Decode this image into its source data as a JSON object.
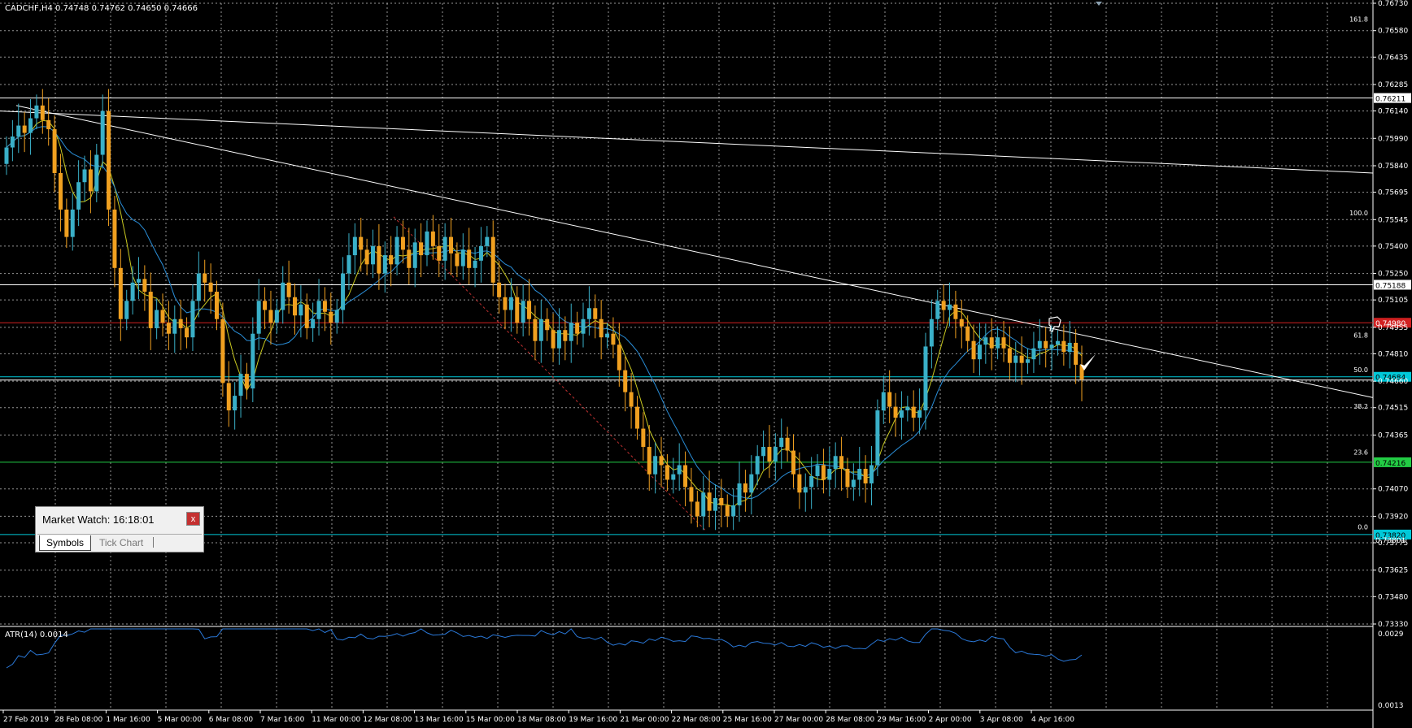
{
  "chart_data": {
    "type": "candlestick",
    "symbol": "CADCHF,H4",
    "ohlc_readout": "0.74748 0.74762 0.74650 0.74666",
    "ylim": [
      0.7333,
      0.7673
    ],
    "y_ticks": [
      "0.76730",
      "0.76580",
      "0.76435",
      "0.76285",
      "0.76140",
      "0.75990",
      "0.75840",
      "0.75695",
      "0.75545",
      "0.75400",
      "0.75250",
      "0.75105",
      "0.74955",
      "0.74810",
      "0.74660",
      "0.74515",
      "0.74365",
      "0.74070",
      "0.73920",
      "0.73775",
      "0.73625",
      "0.73480",
      "0.73330"
    ],
    "x_labels": [
      "27 Feb 2019",
      "28 Feb 08:00",
      "1 Mar 16:00",
      "5 Mar 00:00",
      "6 Mar 08:00",
      "7 Mar 16:00",
      "11 Mar 00:00",
      "12 Mar 08:00",
      "13 Mar 16:00",
      "15 Mar 00:00",
      "18 Mar 08:00",
      "19 Mar 16:00",
      "21 Mar 00:00",
      "22 Mar 08:00",
      "25 Mar 16:00",
      "27 Mar 00:00",
      "28 Mar 08:00",
      "29 Mar 16:00",
      "2 Apr 00:00",
      "3 Apr 08:00",
      "4 Apr 16:00"
    ],
    "close": [
      0.7594,
      0.76,
      0.7606,
      0.7602,
      0.761,
      0.7617,
      0.7609,
      0.7604,
      0.758,
      0.756,
      0.7545,
      0.756,
      0.7575,
      0.7582,
      0.757,
      0.759,
      0.7614,
      0.756,
      0.7528,
      0.75,
      0.751,
      0.752,
      0.7522,
      0.7515,
      0.7495,
      0.7505,
      0.7498,
      0.7492,
      0.75,
      0.7495,
      0.749,
      0.751,
      0.7525,
      0.752,
      0.7515,
      0.75,
      0.7465,
      0.745,
      0.7458,
      0.747,
      0.7462,
      0.7492,
      0.751,
      0.7505,
      0.7498,
      0.7505,
      0.752,
      0.7512,
      0.7502,
      0.7508,
      0.7495,
      0.75,
      0.751,
      0.7504,
      0.7498,
      0.7505,
      0.7525,
      0.7535,
      0.7545,
      0.7538,
      0.753,
      0.754,
      0.7525,
      0.7535,
      0.753,
      0.7545,
      0.7538,
      0.7528,
      0.7542,
      0.7535,
      0.7548,
      0.754,
      0.7532,
      0.7545,
      0.7536,
      0.7529,
      0.7538,
      0.7528,
      0.7532,
      0.754,
      0.7545,
      0.752,
      0.7512,
      0.7505,
      0.7512,
      0.7498,
      0.751,
      0.75,
      0.7488,
      0.75,
      0.7494,
      0.7484,
      0.7494,
      0.7488,
      0.7498,
      0.7492,
      0.75,
      0.7506,
      0.75,
      0.749,
      0.7492,
      0.7486,
      0.7472,
      0.746,
      0.7452,
      0.744,
      0.743,
      0.7415,
      0.7425,
      0.742,
      0.7412,
      0.7415,
      0.742,
      0.7408,
      0.74,
      0.7392,
      0.7405,
      0.7395,
      0.7402,
      0.7398,
      0.7392,
      0.7398,
      0.741,
      0.7405,
      0.7415,
      0.7425,
      0.743,
      0.7422,
      0.743,
      0.7435,
      0.7428,
      0.7415,
      0.7405,
      0.7408,
      0.7414,
      0.742,
      0.7412,
      0.7418,
      0.7425,
      0.7418,
      0.7408,
      0.7412,
      0.7418,
      0.741,
      0.742,
      0.745,
      0.746,
      0.7452,
      0.7446,
      0.745,
      0.7452,
      0.7446,
      0.745,
      0.7485,
      0.75,
      0.751,
      0.7505,
      0.7508,
      0.75,
      0.7496,
      0.7488,
      0.7478,
      0.7486,
      0.749,
      0.7484,
      0.749,
      0.7484,
      0.7476,
      0.748,
      0.7476,
      0.7478,
      0.7484,
      0.7488,
      0.7484,
      0.7486,
      0.7488,
      0.7482,
      0.7487,
      0.7475,
      0.7467
    ],
    "open": [
      0.7585,
      0.7594,
      0.76,
      0.7606,
      0.7602,
      0.761,
      0.7617,
      0.7609,
      0.7604,
      0.758,
      0.756,
      0.7545,
      0.756,
      0.7575,
      0.7582,
      0.757,
      0.759,
      0.7614,
      0.756,
      0.7528,
      0.75,
      0.751,
      0.752,
      0.7522,
      0.7515,
      0.7495,
      0.7505,
      0.7498,
      0.7492,
      0.75,
      0.7495,
      0.749,
      0.751,
      0.7525,
      0.752,
      0.7515,
      0.75,
      0.7465,
      0.745,
      0.7458,
      0.747,
      0.7462,
      0.7492,
      0.751,
      0.7505,
      0.7498,
      0.7505,
      0.752,
      0.7512,
      0.7502,
      0.7508,
      0.7495,
      0.75,
      0.751,
      0.7504,
      0.7498,
      0.7505,
      0.7525,
      0.7535,
      0.7545,
      0.7538,
      0.753,
      0.754,
      0.7525,
      0.7535,
      0.753,
      0.7545,
      0.7538,
      0.7528,
      0.7542,
      0.7535,
      0.7548,
      0.754,
      0.7532,
      0.7545,
      0.7536,
      0.7529,
      0.7538,
      0.7528,
      0.7532,
      0.754,
      0.7545,
      0.752,
      0.7512,
      0.7505,
      0.7512,
      0.7498,
      0.751,
      0.75,
      0.7488,
      0.75,
      0.7494,
      0.7484,
      0.7494,
      0.7488,
      0.7498,
      0.7492,
      0.75,
      0.7506,
      0.75,
      0.749,
      0.7492,
      0.7486,
      0.7472,
      0.746,
      0.7452,
      0.744,
      0.743,
      0.7415,
      0.7425,
      0.742,
      0.7412,
      0.7415,
      0.742,
      0.7408,
      0.74,
      0.7392,
      0.7405,
      0.7395,
      0.7402,
      0.7398,
      0.7392,
      0.7398,
      0.741,
      0.7405,
      0.7415,
      0.7425,
      0.743,
      0.7422,
      0.743,
      0.7435,
      0.7428,
      0.7415,
      0.7405,
      0.7408,
      0.7414,
      0.742,
      0.7412,
      0.7418,
      0.7425,
      0.7418,
      0.7408,
      0.7412,
      0.7418,
      0.741,
      0.742,
      0.745,
      0.746,
      0.7452,
      0.7446,
      0.745,
      0.7452,
      0.7446,
      0.745,
      0.7485,
      0.75,
      0.751,
      0.7505,
      0.7508,
      0.75,
      0.7496,
      0.7488,
      0.7478,
      0.7486,
      0.749,
      0.7484,
      0.749,
      0.7484,
      0.7476,
      0.748,
      0.7476,
      0.7478,
      0.7484,
      0.7488,
      0.7484,
      0.7486,
      0.7488,
      0.7482,
      0.7487,
      0.7475
    ],
    "hlines": [
      {
        "value": 0.76211,
        "label": "0.76211",
        "color": "#ffffff",
        "labelbg": "#ffffff",
        "labelfg": "#000000"
      },
      {
        "value": 0.75188,
        "label": "0.75188",
        "color": "#ffffff",
        "labelbg": "#ffffff",
        "labelfg": "#000000"
      },
      {
        "value": 0.7498,
        "label": "0.74980",
        "color": "#d02020",
        "labelbg": "#d02020",
        "labelfg": "#ffffff"
      },
      {
        "value": 0.74684,
        "label": "0.74684",
        "color": "#00c8d8",
        "labelbg": "#00c8d8",
        "labelfg": "#000000"
      },
      {
        "value": 0.74216,
        "label": "0.74216",
        "color": "#22cc44",
        "labelbg": "#22cc44",
        "labelfg": "#000000"
      },
      {
        "value": 0.7382,
        "label": "0.73820",
        "color": "#00c8d8",
        "labelbg": "#00c8d8",
        "labelfg": "#000000"
      }
    ],
    "fib_levels": [
      {
        "label": "161.8",
        "value": 0.7662
      },
      {
        "label": "100.0",
        "value": 0.7556
      },
      {
        "label": "61.8",
        "value": 0.7489
      },
      {
        "label": "50.0",
        "value": 0.747
      },
      {
        "label": "38.2",
        "value": 0.745
      },
      {
        "label": "23.6",
        "value": 0.7425
      },
      {
        "label": "0.0",
        "value": 0.7384
      }
    ],
    "extra_price_label": "0.73801",
    "indicator": {
      "name": "ATR(14) 0.0014",
      "ylim": [
        0.0013,
        0.0029
      ],
      "y_ticks": [
        "0.0029",
        "0.0013"
      ]
    },
    "colors": {
      "bull": "#3ab0c8",
      "bear": "#f0a020",
      "grid": "#c8c8c8",
      "ma_fast": "#c8c820",
      "ma_slow": "#2a8ed8",
      "atr": "#2a78d8"
    }
  },
  "market_watch": {
    "title": "Market Watch: 16:18:01",
    "close_label": "x",
    "tabs": [
      "Symbols",
      "Tick Chart"
    ]
  }
}
